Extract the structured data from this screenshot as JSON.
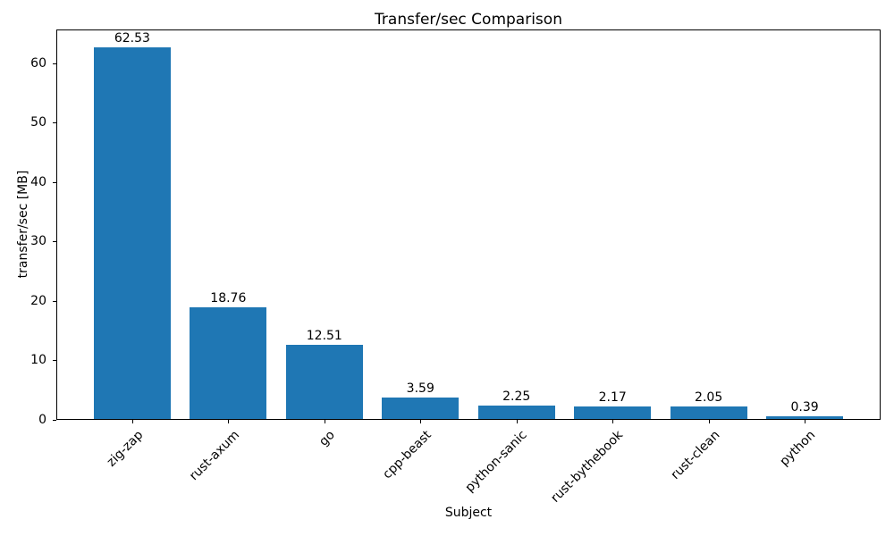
{
  "chart_data": {
    "type": "bar",
    "title": "Transfer/sec Comparison",
    "xlabel": "Subject",
    "ylabel": "transfer/sec [MB]",
    "categories": [
      "zig-zap",
      "rust-axum",
      "go",
      "cpp-beast",
      "python-sanic",
      "rust-bythebook",
      "rust-clean",
      "python"
    ],
    "values": [
      62.53,
      18.76,
      12.51,
      3.59,
      2.25,
      2.17,
      2.05,
      0.39
    ],
    "value_labels": [
      "62.53",
      "18.76",
      "12.51",
      "3.59",
      "2.25",
      "2.17",
      "2.05",
      "0.39"
    ],
    "yticks": [
      0,
      10,
      20,
      30,
      40,
      50,
      60
    ],
    "ylim": [
      0,
      65.66
    ],
    "bar_color": "#1f77b4",
    "bar_width_fraction": 0.8,
    "grid": false,
    "legend_position": "none",
    "xtick_rotation_deg": 45
  }
}
